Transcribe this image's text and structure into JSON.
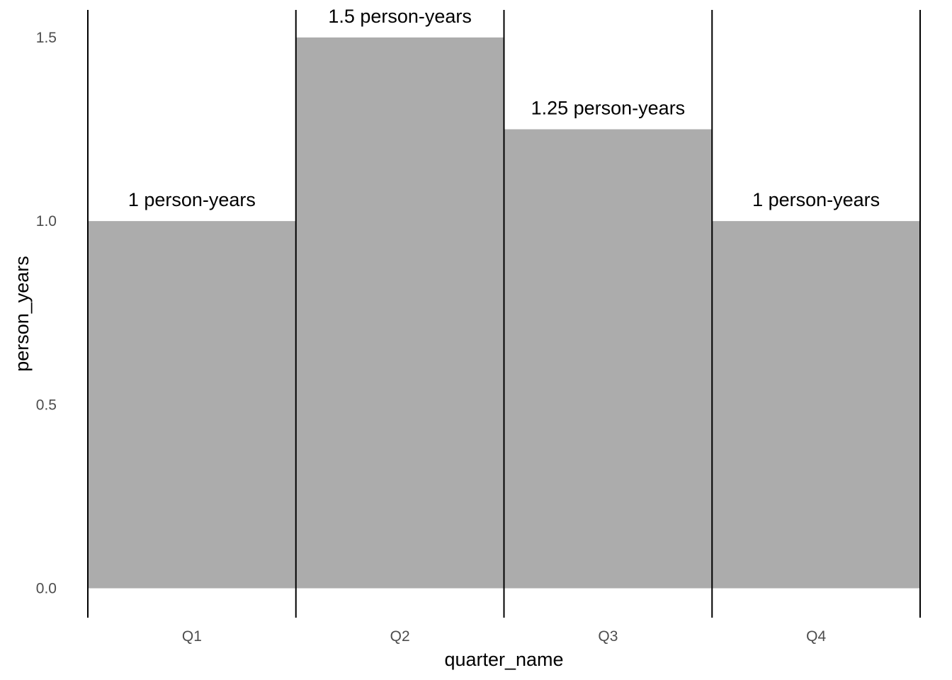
{
  "chart_data": {
    "type": "bar",
    "categories": [
      "Q1",
      "Q2",
      "Q3",
      "Q4"
    ],
    "values": [
      1,
      1.5,
      1.25,
      1
    ],
    "data_labels": [
      "1 person-years",
      "1.5 person-years",
      "1.25 person-years",
      "1 person-years"
    ],
    "title": "",
    "xlabel": "quarter_name",
    "ylabel": "person_years",
    "ylim": [
      -0.08,
      1.575
    ],
    "yticks": [
      0,
      0.5,
      1,
      1.5
    ],
    "ytick_labels": [
      "0.0",
      "0.5",
      "1.0",
      "1.5"
    ],
    "grid": false,
    "legend": "none",
    "colors": {
      "bar_fill": "#acacac",
      "separator": "#000000",
      "tick_text": "#4d4d4d",
      "label_text": "#000000"
    }
  }
}
